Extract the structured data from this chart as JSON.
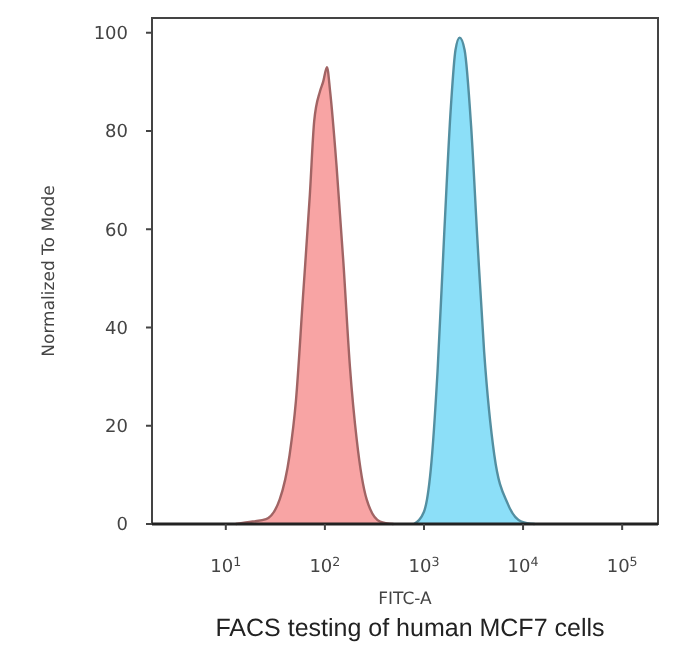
{
  "chart_data": {
    "type": "area",
    "xlabel": "FITC-A",
    "ylabel": "Normalized To Mode",
    "log": "x",
    "xlim": [
      1.8,
      230000
    ],
    "ylim": [
      0,
      103
    ],
    "xticks": [
      {
        "value": 10,
        "label": "10$^{1}$"
      },
      {
        "value": 100,
        "label": "10$^{2}$"
      },
      {
        "value": 1000,
        "label": "10$^{3}$"
      },
      {
        "value": 10000,
        "label": "10$^{4}$"
      },
      {
        "value": 100000,
        "label": "10$^{5}$"
      }
    ],
    "yticks": [
      0,
      20,
      40,
      60,
      80,
      100
    ],
    "series": [
      {
        "color": "#f79a9a",
        "x": [
          12.6,
          18.7,
          25.5,
          35,
          44,
          51,
          60,
          70.5,
          78,
          89,
          96,
          105,
          113,
          131,
          154,
          179,
          210,
          264,
          361,
          492
        ],
        "values": [
          0,
          0.5,
          1,
          5,
          14,
          25,
          46,
          67,
          82,
          88,
          90,
          93,
          88,
          73,
          53,
          32,
          17,
          5,
          0.5,
          0
        ]
      },
      {
        "color": "#80dcf7",
        "x": [
          794,
          1000,
          1170,
          1370,
          1600,
          1870,
          2080,
          2290,
          2570,
          2990,
          3480,
          4050,
          5130,
          7050,
          9640,
          13100
        ],
        "values": [
          0,
          2.5,
          11,
          31,
          59,
          85,
          96.5,
          99,
          96.5,
          81,
          57,
          35,
          14,
          4,
          0.5,
          0
        ]
      }
    ],
    "annotations": [
      "FACS testing of human MCF7 cells"
    ]
  }
}
